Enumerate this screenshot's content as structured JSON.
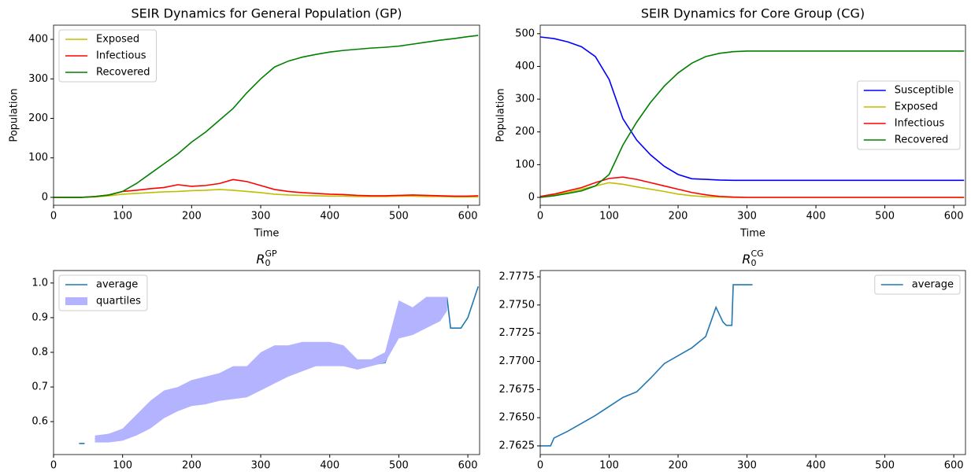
{
  "chart_data": [
    {
      "type": "line",
      "title": "SEIR Dynamics for General Population (GP)",
      "xlabel": "Time",
      "ylabel": "Population",
      "legend": "upper left",
      "xlim": [
        0,
        617
      ],
      "ylim": [
        -20,
        436
      ],
      "xticks": [
        0,
        100,
        200,
        300,
        400,
        500,
        600
      ],
      "yticks": [
        0,
        100,
        200,
        300,
        400
      ],
      "x": [
        0,
        20,
        40,
        60,
        80,
        100,
        120,
        140,
        160,
        180,
        200,
        220,
        240,
        260,
        280,
        300,
        320,
        340,
        360,
        380,
        400,
        420,
        440,
        460,
        480,
        500,
        520,
        540,
        560,
        580,
        600,
        615
      ],
      "series": [
        {
          "name": "Exposed",
          "color": "#bfbf00",
          "values": [
            0,
            0,
            0,
            1,
            4,
            8,
            10,
            12,
            14,
            15,
            17,
            18,
            20,
            18,
            15,
            12,
            8,
            6,
            5,
            4,
            3,
            3,
            2,
            2,
            2,
            3,
            3,
            2,
            2,
            1,
            1,
            1
          ]
        },
        {
          "name": "Infectious",
          "color": "#ff0000",
          "values": [
            0,
            0,
            0,
            2,
            6,
            15,
            18,
            22,
            25,
            32,
            28,
            30,
            35,
            45,
            40,
            30,
            20,
            15,
            12,
            10,
            8,
            7,
            5,
            4,
            4,
            5,
            6,
            5,
            4,
            3,
            3,
            4
          ]
        },
        {
          "name": "Recovered",
          "color": "#008000",
          "values": [
            0,
            0,
            0,
            2,
            6,
            15,
            35,
            60,
            85,
            110,
            140,
            165,
            195,
            225,
            265,
            300,
            330,
            345,
            355,
            362,
            368,
            372,
            375,
            378,
            380,
            383,
            388,
            393,
            398,
            402,
            407,
            410
          ]
        }
      ]
    },
    {
      "type": "line",
      "title": "SEIR Dynamics for Core Group (CG)",
      "xlabel": "Time",
      "ylabel": "Population",
      "legend": "center right",
      "xlim": [
        0,
        617
      ],
      "ylim": [
        -24,
        526
      ],
      "xticks": [
        0,
        100,
        200,
        300,
        400,
        500,
        600
      ],
      "yticks": [
        0,
        100,
        200,
        300,
        400,
        500
      ],
      "x": [
        0,
        20,
        40,
        60,
        80,
        100,
        120,
        140,
        160,
        180,
        200,
        220,
        240,
        260,
        280,
        300,
        320,
        340,
        360,
        380,
        400,
        420,
        440,
        460,
        480,
        500,
        520,
        540,
        560,
        580,
        600,
        615
      ],
      "series": [
        {
          "name": "Susceptible",
          "color": "#0000ff",
          "values": [
            490,
            485,
            475,
            460,
            430,
            360,
            240,
            175,
            130,
            95,
            70,
            57,
            55,
            53,
            52,
            52,
            52,
            52,
            52,
            52,
            52,
            52,
            52,
            52,
            52,
            52,
            52,
            52,
            52,
            52,
            52,
            52
          ]
        },
        {
          "name": "Exposed",
          "color": "#bfbf00",
          "values": [
            2,
            8,
            15,
            25,
            35,
            45,
            40,
            32,
            25,
            18,
            10,
            5,
            2,
            1,
            0,
            0,
            0,
            0,
            0,
            0,
            0,
            0,
            0,
            0,
            0,
            0,
            0,
            0,
            0,
            0,
            0,
            0
          ]
        },
        {
          "name": "Infectious",
          "color": "#ff0000",
          "values": [
            3,
            10,
            20,
            30,
            45,
            58,
            62,
            55,
            45,
            35,
            25,
            15,
            8,
            3,
            1,
            0,
            0,
            0,
            0,
            0,
            0,
            0,
            0,
            0,
            0,
            0,
            0,
            0,
            0,
            0,
            0,
            0
          ]
        },
        {
          "name": "Recovered",
          "color": "#008000",
          "values": [
            0,
            5,
            12,
            20,
            35,
            70,
            160,
            230,
            290,
            340,
            380,
            410,
            430,
            440,
            445,
            447,
            447,
            447,
            447,
            447,
            447,
            447,
            447,
            447,
            447,
            447,
            447,
            447,
            447,
            447,
            447,
            447
          ]
        }
      ]
    },
    {
      "type": "line",
      "title": {
        "base": "R",
        "sub": "0",
        "sup": "GP"
      },
      "legend": "upper left",
      "xlim": [
        0,
        617
      ],
      "ylim": [
        0.505,
        1.036
      ],
      "xticks": [
        0,
        100,
        200,
        300,
        400,
        500,
        600
      ],
      "yticks": [
        0.6,
        0.7,
        0.8,
        0.9,
        {
          "value": 1,
          "label": "1.0"
        }
      ],
      "x": [
        37,
        45,
        50,
        60,
        80,
        100,
        120,
        140,
        160,
        180,
        200,
        220,
        240,
        260,
        280,
        300,
        320,
        340,
        360,
        380,
        400,
        420,
        440,
        460,
        480,
        500,
        520,
        540,
        560,
        570,
        575,
        590,
        600,
        615
      ],
      "series": [
        {
          "name": "average",
          "color": "#1f77b4",
          "values": [
            0.537,
            0.537,
            null,
            0.55,
            0.55,
            0.555,
            0.58,
            0.61,
            0.64,
            0.66,
            0.675,
            0.685,
            0.69,
            0.7,
            0.71,
            0.72,
            0.74,
            0.76,
            0.775,
            0.775,
            0.79,
            0.785,
            0.755,
            0.765,
            0.77,
            0.87,
            0.89,
            0.91,
            0.93,
            0.955,
            0.87,
            0.87,
            0.9,
            0.99
          ]
        },
        {
          "name": "quartiles",
          "color": "#b3b3ff",
          "kind": "band",
          "lower": [
            null,
            null,
            null,
            0.54,
            0.54,
            0.545,
            0.56,
            0.58,
            0.61,
            0.63,
            0.645,
            0.65,
            0.66,
            0.665,
            0.67,
            0.69,
            0.71,
            0.73,
            0.745,
            0.76,
            0.76,
            0.76,
            0.75,
            0.76,
            0.77,
            0.84,
            0.85,
            0.87,
            0.89,
            0.92,
            null,
            null,
            null,
            null
          ],
          "upper": [
            null,
            null,
            null,
            0.56,
            0.565,
            0.58,
            0.62,
            0.66,
            0.69,
            0.7,
            0.72,
            0.73,
            0.74,
            0.76,
            0.76,
            0.8,
            0.82,
            0.82,
            0.83,
            0.83,
            0.83,
            0.82,
            0.78,
            0.78,
            0.8,
            0.95,
            0.93,
            0.96,
            0.96,
            0.96,
            null,
            null,
            null,
            null
          ]
        }
      ]
    },
    {
      "type": "line",
      "title": {
        "base": "R",
        "sub": "0",
        "sup": "CG"
      },
      "legend": "upper right",
      "xlim": [
        0,
        617
      ],
      "ylim": [
        2.76173,
        2.77806
      ],
      "xticks": [
        0,
        100,
        200,
        300,
        400,
        500,
        600
      ],
      "yticks": [
        2.7625,
        {
          "value": 2.765,
          "label": "2.7650"
        },
        2.7675,
        {
          "value": 2.77,
          "label": "2.7700"
        },
        2.7725,
        {
          "value": 2.775,
          "label": "2.7750"
        },
        2.7775
      ],
      "x": [
        0,
        15,
        20,
        40,
        60,
        80,
        100,
        120,
        140,
        160,
        180,
        200,
        220,
        240,
        255,
        265,
        270,
        278,
        280,
        308
      ],
      "series": [
        {
          "name": "average",
          "color": "#1f77b4",
          "values": [
            2.7625,
            2.7625,
            2.7632,
            2.7638,
            2.7645,
            2.7652,
            2.766,
            2.7668,
            2.7673,
            2.7685,
            2.7698,
            2.7705,
            2.7712,
            2.7722,
            2.7748,
            2.7735,
            2.7732,
            2.7732,
            2.7768,
            2.7768
          ]
        }
      ]
    }
  ]
}
